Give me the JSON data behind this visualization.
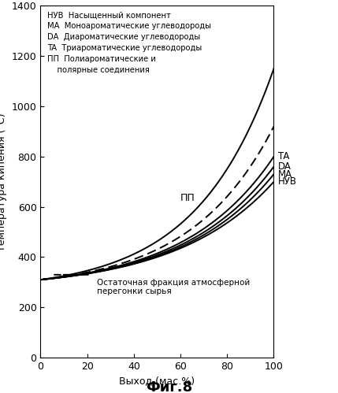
{
  "title": "Фиг.8",
  "xlabel": "Выход (мас.%)",
  "ylabel": "Температура кипения (°C)",
  "xlim": [
    0,
    100
  ],
  "ylim": [
    0,
    1400
  ],
  "xticks": [
    0,
    20,
    40,
    60,
    80,
    100
  ],
  "yticks": [
    0,
    200,
    400,
    600,
    800,
    1000,
    1200,
    1400
  ],
  "legend_lines": [
    "НУВ  Насыщенный компонент",
    "MA  Моноароматические углеводороды",
    "DA  Диароматические углеводороды",
    "TA  Триароматические углеводороды",
    "ПП  Полиароматические и",
    "    полярные соединения"
  ],
  "right_labels": [
    "TA",
    "DA",
    "MA",
    "НУВ"
  ],
  "pp_label": "ПП",
  "feed_label": "Остаточная фракция атмосферной\nперегонки сырья",
  "background_color": "#ffffff",
  "curve_color": "#000000"
}
